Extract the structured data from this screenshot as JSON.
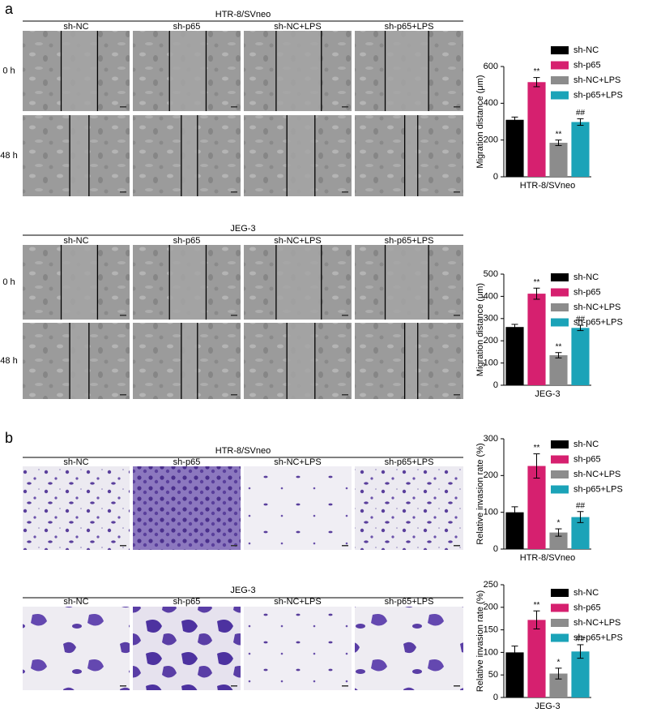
{
  "figure": {
    "panels": [
      {
        "label": "a",
        "grids": [
          {
            "title": "HTR-8/SVneo",
            "columns": [
              "sh-NC",
              "sh-p65",
              "sh-NC+LPS",
              "sh-p65+LPS"
            ],
            "rows": [
              "0 h",
              "48 h"
            ]
          },
          {
            "title": "JEG-3",
            "columns": [
              "sh-NC",
              "sh-p65",
              "sh-NC+LPS",
              "sh-p65+LPS"
            ],
            "rows": [
              "0 h",
              "48 h"
            ]
          }
        ]
      },
      {
        "label": "b",
        "grids": [
          {
            "title": "HTR-8/SVneo",
            "columns": [
              "sh-NC",
              "sh-p65",
              "sh-NC+LPS",
              "sh-p65+LPS"
            ]
          },
          {
            "title": "JEG-3",
            "columns": [
              "sh-NC",
              "sh-p65",
              "sh-NC+LPS",
              "sh-p65+LPS"
            ]
          }
        ]
      }
    ]
  },
  "chart_data": [
    {
      "type": "bar",
      "ylabel": "Migration distance (μm)",
      "categories": [
        "HTR-8/SVneo"
      ],
      "ylim": [
        0,
        600
      ],
      "yticks": [
        0,
        200,
        400,
        600
      ],
      "series": [
        {
          "name": "sh-NC",
          "color": "#000000",
          "values": [
            310
          ],
          "errors": [
            15
          ],
          "annotations": [
            null
          ]
        },
        {
          "name": "sh-p65",
          "color": "#d6206f",
          "values": [
            515
          ],
          "errors": [
            25
          ],
          "annotations": [
            "**"
          ]
        },
        {
          "name": "sh-NC+LPS",
          "color": "#8c8c8c",
          "values": [
            185
          ],
          "errors": [
            15
          ],
          "annotations": [
            "**"
          ]
        },
        {
          "name": "sh-p65+LPS",
          "color": "#1ba3b8",
          "values": [
            298
          ],
          "errors": [
            18
          ],
          "annotations": [
            "##"
          ]
        }
      ]
    },
    {
      "type": "bar",
      "ylabel": "Migration distance (μm)",
      "categories": [
        "JEG-3"
      ],
      "ylim": [
        0,
        500
      ],
      "yticks": [
        0,
        100,
        200,
        300,
        400,
        500
      ],
      "series": [
        {
          "name": "sh-NC",
          "color": "#000000",
          "values": [
            262
          ],
          "errors": [
            12
          ],
          "annotations": [
            null
          ]
        },
        {
          "name": "sh-p65",
          "color": "#d6206f",
          "values": [
            412
          ],
          "errors": [
            25
          ],
          "annotations": [
            "**"
          ]
        },
        {
          "name": "sh-NC+LPS",
          "color": "#8c8c8c",
          "values": [
            135
          ],
          "errors": [
            12
          ],
          "annotations": [
            "**"
          ]
        },
        {
          "name": "sh-p65+LPS",
          "color": "#1ba3b8",
          "values": [
            258
          ],
          "errors": [
            12
          ],
          "annotations": [
            "##"
          ]
        }
      ]
    },
    {
      "type": "bar",
      "ylabel": "Relative invasion rate (%)",
      "categories": [
        "HTR-8/SVneo"
      ],
      "ylim": [
        0,
        300
      ],
      "yticks": [
        0,
        100,
        200,
        300
      ],
      "series": [
        {
          "name": "sh-NC",
          "color": "#000000",
          "values": [
            100
          ],
          "errors": [
            15
          ],
          "annotations": [
            null
          ]
        },
        {
          "name": "sh-p65",
          "color": "#d6206f",
          "values": [
            226
          ],
          "errors": [
            33
          ],
          "annotations": [
            "**"
          ]
        },
        {
          "name": "sh-NC+LPS",
          "color": "#8c8c8c",
          "values": [
            45
          ],
          "errors": [
            10
          ],
          "annotations": [
            "*"
          ]
        },
        {
          "name": "sh-p65+LPS",
          "color": "#1ba3b8",
          "values": [
            87
          ],
          "errors": [
            15
          ],
          "annotations": [
            "##"
          ]
        }
      ]
    },
    {
      "type": "bar",
      "ylabel": "Relative invasion rate (%)",
      "categories": [
        "JEG-3"
      ],
      "ylim": [
        0,
        250
      ],
      "yticks": [
        0,
        50,
        100,
        150,
        200,
        250
      ],
      "series": [
        {
          "name": "sh-NC",
          "color": "#000000",
          "values": [
            100
          ],
          "errors": [
            14
          ],
          "annotations": [
            null
          ]
        },
        {
          "name": "sh-p65",
          "color": "#d6206f",
          "values": [
            172
          ],
          "errors": [
            20
          ],
          "annotations": [
            "**"
          ]
        },
        {
          "name": "sh-NC+LPS",
          "color": "#8c8c8c",
          "values": [
            53
          ],
          "errors": [
            12
          ],
          "annotations": [
            "*"
          ]
        },
        {
          "name": "sh-p65+LPS",
          "color": "#1ba3b8",
          "values": [
            102
          ],
          "errors": [
            15
          ],
          "annotations": [
            "##"
          ]
        }
      ]
    }
  ]
}
